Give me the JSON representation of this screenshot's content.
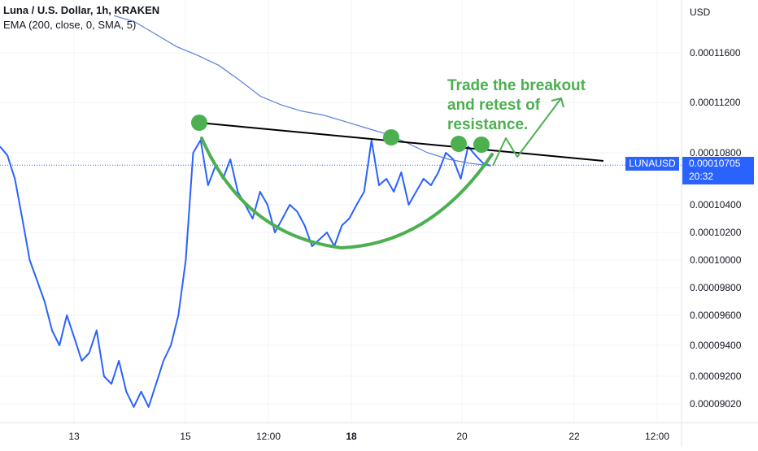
{
  "header": {
    "title": "Luna / U.S. Dollar, 1h, KRAKEN",
    "indicator": "EMA (200, close, 0, SMA, 5)"
  },
  "axis": {
    "currency": "USD"
  },
  "last_price": {
    "symbol": "LUNAUSD",
    "price": "0.00010705",
    "countdown": "20:32"
  },
  "annotation": {
    "text": "Trade the breakout\nand retest of\nresistance."
  },
  "colors": {
    "price": "#2962ff",
    "ema": "#5b7fe0",
    "cup": "#4caf50",
    "resistance": "#000000",
    "last_price_bg": "#2962ff"
  },
  "chart_data": {
    "type": "line",
    "title": "Luna / U.S. Dollar, 1h, KRAKEN",
    "x_ticks": [
      "13",
      "15",
      "12:00",
      "18",
      "20",
      "22",
      "12:00"
    ],
    "y_ticks": [
      "0.00011600",
      "0.00011200",
      "0.00010800",
      "0.00010400",
      "0.00010200",
      "0.00010000",
      "0.00009800",
      "0.00009600",
      "0.00009400",
      "0.00009200",
      "0.00009020"
    ],
    "ylabel": "USD",
    "ylim": [
      8.95e-05,
      0.0001195
    ],
    "series": [
      {
        "name": "LUNAUSD",
        "values": [
          0.0001085,
          0.0001078,
          0.000106,
          0.000103,
          0.0001,
          9.85e-05,
          9.7e-05,
          9.5e-05,
          9.4e-05,
          9.6e-05,
          9.45e-05,
          9.3e-05,
          9.35e-05,
          9.5e-05,
          9.2e-05,
          9.15e-05,
          9.3e-05,
          9.1e-05,
          9e-05,
          9.1e-05,
          9e-05,
          9.15e-05,
          9.3e-05,
          9.4e-05,
          9.6e-05,
          0.0001,
          0.000108,
          0.000109,
          0.0001055,
          0.000107,
          0.000106,
          0.0001075,
          0.000105,
          0.000104,
          0.000103,
          0.000105,
          0.000104,
          0.000102,
          0.000103,
          0.000104,
          0.0001035,
          0.0001025,
          0.000101,
          0.0001015,
          0.000102,
          0.000101,
          0.0001025,
          0.000103,
          0.000104,
          0.000105,
          0.000109,
          0.0001055,
          0.000106,
          0.000105,
          0.0001065,
          0.000104,
          0.000105,
          0.000106,
          0.0001055,
          0.0001065,
          0.000108,
          0.0001075,
          0.000106,
          0.0001085,
          0.0001078,
          0.0001072,
          0.000107
        ]
      },
      {
        "name": "EMA",
        "values": [
          0.000119,
          0.0001185,
          0.0001175,
          0.0001165,
          0.0001158,
          0.000115,
          0.0001138,
          0.0001125,
          0.0001118,
          0.0001113,
          0.000111,
          0.0001105,
          0.00011,
          0.0001095,
          0.0001088,
          0.000108,
          0.0001075,
          0.0001072,
          0.000107
        ]
      }
    ],
    "annotations": [
      "Trade the breakout and retest of resistance."
    ]
  }
}
